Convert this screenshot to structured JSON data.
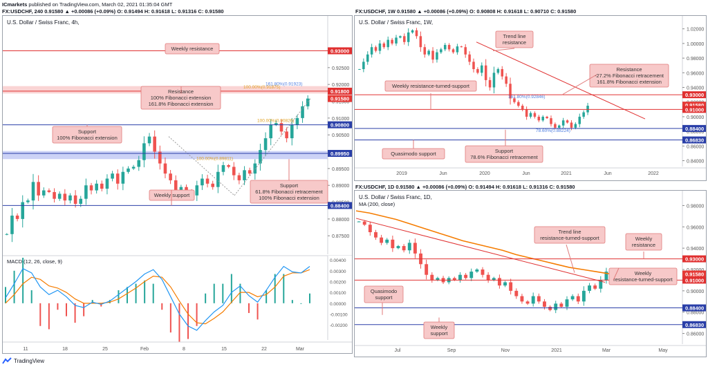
{
  "header": {
    "publisher": "ICmarkets",
    "published_text": "published on TradingView.com, March 02, 2021 01:35:04 GMT",
    "line2": "FX:USDCHF, 240  0.91580  ▲ +0.00086 (+0.09%)  O: 0.91494  H: 0.91618  L: 0.91316  C: 0.91580"
  },
  "colors": {
    "up": "#26a69a",
    "down": "#ef5350",
    "red_line": "#e03030",
    "blue_line": "#2a3fa8",
    "label_bg": "#f7c9c9",
    "label_border": "#e07a7a",
    "ma": "#f57c00",
    "macd": "#2196f3",
    "signal": "#f57c00"
  },
  "chart_data": [
    {
      "id": "left",
      "type": "candlestick",
      "title": "U.S. Dollar / Swiss Franc, 4h,",
      "currency": "CHF",
      "ylim": [
        0.8695,
        0.9375
      ],
      "yticks": [
        {
          "v": 0.925,
          "t": "0.92500"
        },
        {
          "v": 0.92,
          "t": "0.92000"
        },
        {
          "v": 0.915,
          "t": "0.91500"
        },
        {
          "v": 0.91,
          "t": "0.91000"
        },
        {
          "v": 0.905,
          "t": "0.90500"
        },
        {
          "v": 0.9,
          "t": "0.90000"
        },
        {
          "v": 0.895,
          "t": "0.89500"
        },
        {
          "v": 0.89,
          "t": "0.89000"
        },
        {
          "v": 0.885,
          "t": "0.88500"
        },
        {
          "v": 0.88,
          "t": "0.88000"
        },
        {
          "v": 0.875,
          "t": "0.87500"
        }
      ],
      "xticks": [
        "11",
        "18",
        "25",
        "Feb",
        "8",
        "15",
        "22",
        "Mar"
      ],
      "price_path": [
        0.8755,
        0.881,
        0.88,
        0.885,
        0.8855,
        0.891,
        0.887,
        0.8885,
        0.888,
        0.886,
        0.8875,
        0.8855,
        0.887,
        0.8845,
        0.886,
        0.89,
        0.8885,
        0.8905,
        0.889,
        0.892,
        0.8935,
        0.8905,
        0.894,
        0.895,
        0.8955,
        0.8975,
        0.9025,
        0.9045,
        0.9,
        0.8965,
        0.8935,
        0.8915,
        0.8885,
        0.8895,
        0.888,
        0.887,
        0.89,
        0.892,
        0.8905,
        0.8895,
        0.894,
        0.896,
        0.8955,
        0.893,
        0.8915,
        0.8945,
        0.8935,
        0.8965,
        0.9005,
        0.904,
        0.908,
        0.9085,
        0.906,
        0.904,
        0.908,
        0.91,
        0.9135,
        0.9158
      ],
      "levels": [
        {
          "value": 0.93,
          "label": "0.93000",
          "kind": "red"
        },
        {
          "value": 0.918,
          "label": "0.91800",
          "kind": "red"
        },
        {
          "value": 0.9158,
          "label": "0.91580",
          "kind": "price"
        },
        {
          "value": 0.908,
          "label": "0.90800",
          "kind": "blue"
        },
        {
          "value": 0.8995,
          "label": "0.89950",
          "kind": "blue"
        },
        {
          "value": 0.884,
          "label": "0.88400",
          "kind": "blue"
        }
      ],
      "fib_text": [
        {
          "t": "161.80%(0.91923)",
          "c": "#4e7ee0"
        },
        {
          "t": "100.00%(0.91875)",
          "c": "#e0a020"
        },
        {
          "t": "100.00%(0.90826)",
          "c": "#e0a020"
        },
        {
          "t": "100.00%(0.89811)",
          "c": "#e0a020"
        }
      ],
      "annotations": [
        {
          "text": "Weekly resistance"
        },
        {
          "text": "Resistance\n100% Fibonacci extension\n161.8% Fibonacci extension"
        },
        {
          "text": "Support\n100% Fibonacci extension"
        },
        {
          "text": "Weekly support"
        },
        {
          "text": "Support\n61.8% Fibonacci retracement\n100% Fibonacci extension"
        }
      ]
    },
    {
      "id": "macd",
      "type": "macd",
      "title": "MACD (12, 26, close, 9)",
      "ylim": [
        -0.0032,
        0.0042
      ],
      "yticks": [
        {
          "v": 0.004,
          "t": "0.00400"
        },
        {
          "v": 0.003,
          "t": "0.00300"
        },
        {
          "v": 0.002,
          "t": "0.00200"
        },
        {
          "v": 0.001,
          "t": "0.00100"
        },
        {
          "v": 0.0,
          "t": "0.00000"
        },
        {
          "v": -0.001,
          "t": "-0.00100"
        },
        {
          "v": -0.002,
          "t": "-0.00200"
        }
      ],
      "macd": [
        0.0005,
        0.0018,
        0.0032,
        0.0028,
        0.0015,
        0.0008,
        0.0012,
        0.0006,
        -0.0002,
        -0.0004,
        0.0001,
        -0.0001,
        0.0002,
        0.0008,
        0.0014,
        0.002,
        0.0027,
        0.0031,
        0.0022,
        0.0006,
        -0.001,
        -0.0021,
        -0.0025,
        -0.0016,
        -0.0008,
        -0.0002,
        0.001,
        0.0016,
        0.0007,
        0.0001,
        0.0012,
        0.0024,
        0.0034,
        0.0029,
        0.0028,
        0.0034
      ],
      "signal": [
        0.0,
        0.0008,
        0.0018,
        0.0024,
        0.0022,
        0.0016,
        0.0014,
        0.001,
        0.0004,
        0.0,
        0.0,
        0.0,
        0.0001,
        0.0004,
        0.0009,
        0.0014,
        0.002,
        0.0025,
        0.0024,
        0.0015,
        0.0002,
        -0.001,
        -0.0018,
        -0.0019,
        -0.0014,
        -0.0008,
        0.0001,
        0.001,
        0.001,
        0.0006,
        0.0008,
        0.0015,
        0.0025,
        0.0028,
        0.0028,
        0.0031
      ]
    },
    {
      "id": "weekly",
      "type": "candlestick",
      "title": "U.S. Dollar / Swiss Franc, 1W,",
      "header_line": "FX:USDCHF, 1W  0.91580  ▲ +0.00086 (+0.09%)  O: 0.90808  H: 0.91618  L: 0.90710  C: 0.91580",
      "currency": "CHF",
      "ylim": [
        0.832,
        1.032
      ],
      "yticks": [
        {
          "v": 1.02,
          "t": "1.02000"
        },
        {
          "v": 1.0,
          "t": "1.00000"
        },
        {
          "v": 0.98,
          "t": "0.98000"
        },
        {
          "v": 0.96,
          "t": "0.96000"
        },
        {
          "v": 0.94,
          "t": "0.94000"
        },
        {
          "v": 0.92,
          "t": "0.92000"
        },
        {
          "v": 0.9,
          "t": "0.90000"
        },
        {
          "v": 0.88,
          "t": "0.88000"
        },
        {
          "v": 0.86,
          "t": "0.86000"
        },
        {
          "v": 0.84,
          "t": "0.84000"
        }
      ],
      "xticks": [
        "2019",
        "Jun",
        "2020",
        "Jun",
        "2021",
        "Jun",
        "2022"
      ],
      "price_path": [
        0.965,
        0.975,
        0.985,
        0.995,
        0.99,
        1.0,
        0.995,
        1.005,
        1.0,
        1.008,
        1.01,
        1.002,
        1.015,
        1.018,
        1.01,
        0.995,
        0.985,
        0.99,
        0.978,
        0.988,
        0.992,
        0.998,
        0.992,
        0.988,
        0.996,
        0.995,
        0.985,
        0.975,
        0.965,
        0.96,
        0.97,
        0.95,
        0.94,
        0.96,
        0.965,
        0.955,
        0.945,
        0.925,
        0.92,
        0.915,
        0.91,
        0.9,
        0.905,
        0.9,
        0.895,
        0.9,
        0.898,
        0.89,
        0.885,
        0.888,
        0.895,
        0.892,
        0.885,
        0.89,
        0.9,
        0.906,
        0.915
      ],
      "levels": [
        {
          "value": 0.93,
          "label": "0.93000",
          "kind": "red"
        },
        {
          "value": 0.9158,
          "label": "0.91580",
          "kind": "price"
        },
        {
          "value": 0.91,
          "label": "0.91000",
          "kind": "red"
        },
        {
          "value": 0.884,
          "label": "0.88400",
          "kind": "blue"
        },
        {
          "value": 0.8683,
          "label": "0.86830",
          "kind": "blue"
        }
      ],
      "fib_text": [
        {
          "t": "161.80%(0.92846)",
          "c": "#4e7ee0"
        },
        {
          "t": "78.60%(0.88224)",
          "c": "#4e7ee0"
        }
      ],
      "annotations": [
        {
          "text": "Trend line\nresistance"
        },
        {
          "text": "Resistance\n-27.2% Fibonacci retracement\n161.8% Fibonacci extension"
        },
        {
          "text": "Weekly resistance-turned-support"
        },
        {
          "text": "Quasimodo support"
        },
        {
          "text": "Support\n78.6% Fibonacci retracement"
        }
      ]
    },
    {
      "id": "daily",
      "type": "candlestick",
      "title": "U.S. Dollar / Swiss Franc, 1D,",
      "subtitle": "MA (200, close)",
      "header_line": "FX:USDCHF, 1D  0.91580  ▲ +0.00086 (+0.09%)  O: 0.91494  H: 0.91618  L: 0.91316  C: 0.91580",
      "currency": "CHF",
      "ylim": [
        0.85,
        0.99
      ],
      "yticks": [
        {
          "v": 0.98,
          "t": "0.98000"
        },
        {
          "v": 0.96,
          "t": "0.96000"
        },
        {
          "v": 0.94,
          "t": "0.94000"
        },
        {
          "v": 0.92,
          "t": "0.92000"
        },
        {
          "v": 0.9,
          "t": "0.90000"
        },
        {
          "v": 0.88,
          "t": "0.88000"
        },
        {
          "v": 0.86,
          "t": "0.86000"
        }
      ],
      "xticks": [
        "Jul",
        "Sep",
        "Nov",
        "2021",
        "Mar",
        "May"
      ],
      "price_path": [
        0.965,
        0.962,
        0.955,
        0.95,
        0.945,
        0.948,
        0.94,
        0.942,
        0.938,
        0.945,
        0.935,
        0.925,
        0.915,
        0.91,
        0.912,
        0.908,
        0.912,
        0.91,
        0.915,
        0.912,
        0.918,
        0.92,
        0.915,
        0.91,
        0.912,
        0.905,
        0.908,
        0.9,
        0.895,
        0.89,
        0.888,
        0.895,
        0.89,
        0.885,
        0.882,
        0.888,
        0.885,
        0.892,
        0.895,
        0.89,
        0.9,
        0.905,
        0.902,
        0.91,
        0.918
      ],
      "ma_path": [
        0.975,
        0.973,
        0.97,
        0.967,
        0.963,
        0.959,
        0.955,
        0.951,
        0.947,
        0.944,
        0.941,
        0.938,
        0.934,
        0.931,
        0.928,
        0.925,
        0.922,
        0.92,
        0.918,
        0.916
      ],
      "levels": [
        {
          "value": 0.93,
          "label": "0.93000",
          "kind": "red"
        },
        {
          "value": 0.9158,
          "label": "0.91580",
          "kind": "price"
        },
        {
          "value": 0.91,
          "label": "0.91000",
          "kind": "red"
        },
        {
          "value": 0.884,
          "label": "0.88400",
          "kind": "blue"
        },
        {
          "value": 0.8683,
          "label": "0.86830",
          "kind": "blue"
        }
      ],
      "annotations": [
        {
          "text": "Trend line\nresistance-turned-support"
        },
        {
          "text": "Weekly\nresistance"
        },
        {
          "text": "Weekly\nresistance-turned-support"
        },
        {
          "text": "Quasimodo\nsupport"
        },
        {
          "text": "Weekly\nsupport"
        }
      ]
    }
  ],
  "footer": {
    "brand": "TradingView"
  }
}
